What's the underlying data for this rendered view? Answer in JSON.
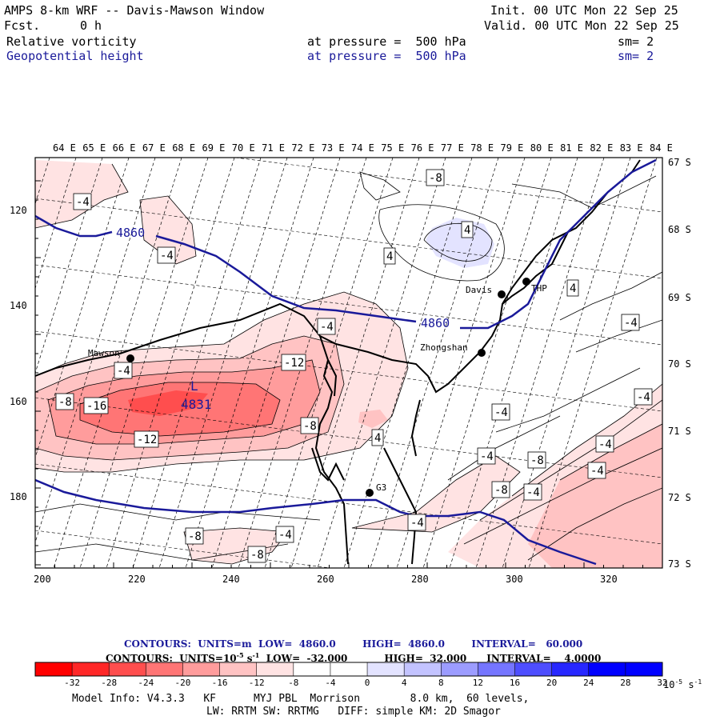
{
  "header": {
    "title": "AMPS 8-km WRF -- Davis-Mawson Window",
    "fcst_label": "Fcst.",
    "fcst_value": "0 h",
    "init": "Init. 00 UTC Mon 22 Sep 25",
    "valid": "Valid. 00 UTC Mon 22 Sep 25",
    "field1": "Relative vorticity",
    "field1_level": "at pressure =  500 hPa",
    "field1_sm": "sm= 2",
    "field2": "Geopotential height",
    "field2_level": "at pressure =  500 hPa",
    "field2_sm": "sm= 2",
    "field2_color": "#1a1a9a"
  },
  "map": {
    "lon_labels": [
      "64 E",
      "65 E",
      "66 E",
      "67 E",
      "68 E",
      "69 E",
      "70 E",
      "71 E",
      "72 E",
      "73 E",
      "74 E",
      "75 E",
      "76 E",
      "77 E",
      "78 E",
      "79 E",
      "80 E",
      "81 E",
      "82 E",
      "83 E",
      "84 E"
    ],
    "lat_labels": [
      "67 S",
      "68 S",
      "69 S",
      "70 S",
      "71 S",
      "72 S",
      "73 S"
    ],
    "x_ticks": [
      "200",
      "220",
      "240",
      "260",
      "280",
      "300",
      "320"
    ],
    "y_ticks": [
      "120",
      "140",
      "160",
      "180"
    ],
    "stations": [
      {
        "name": "Davis",
        "id": "davis"
      },
      {
        "name": "THP",
        "id": "thp"
      },
      {
        "name": "Mawson",
        "id": "mawson"
      },
      {
        "name": "Zhongshan",
        "id": "zhongshan"
      },
      {
        "name": "G3",
        "id": "g3"
      }
    ],
    "low_center": {
      "symbol": "L",
      "value": "4831"
    },
    "height_labels": [
      "4860",
      "4860"
    ],
    "vort_labels": [
      "-4",
      "-4",
      "4",
      "-8",
      "4",
      "4",
      "-4",
      "-4",
      "-4",
      "-12",
      "-4",
      "-8",
      "-16",
      "-12",
      "-8",
      "-4",
      "4",
      "-4",
      "-4",
      "-8",
      "-4",
      "-8",
      "-4",
      "-4",
      "-8",
      "-4",
      "-8"
    ]
  },
  "legend": {
    "contours1": "CONTOURS:  UNITS=m  LOW=  4860.0        HIGH=  4860.0        INTERVAL=   60.000",
    "contours2_a": "CONTOURS:  UNITS=10",
    "contours2_exp": "-5",
    "contours2_b": " s",
    "contours2_exp2": "-1",
    "contours2_c": "  LOW=  -32.000           HIGH=  32.000      INTERVAL=    4.0000",
    "colorbar_colors": [
      "#ff0000",
      "#ff2727",
      "#ff4e4e",
      "#ff7575",
      "#ff9c9c",
      "#ffc3c3",
      "#ffe3e3",
      "#ffffff",
      "#ffffff",
      "#e3e3ff",
      "#c3c3ff",
      "#9c9cff",
      "#7575ff",
      "#4e4eff",
      "#2727ff",
      "#0000ff",
      "#0000ff"
    ],
    "colorbar_ticks": [
      "-32",
      "-28",
      "-24",
      "-20",
      "-16",
      "-12",
      "-8",
      "-4",
      "0",
      "4",
      "8",
      "12",
      "16",
      "20",
      "24",
      "28",
      "32"
    ],
    "colorbar_units": "10",
    "colorbar_units_exp": "-5",
    "colorbar_units_s": " s",
    "colorbar_units_exp2": "-1"
  },
  "footer": {
    "line1": "Model Info: V4.3.3   KF      MYJ PBL  Morrison        8.0 km,  60 levels,",
    "line2": "LW: RRTM SW: RRTMG   DIFF: simple KM: 2D Smagor"
  }
}
